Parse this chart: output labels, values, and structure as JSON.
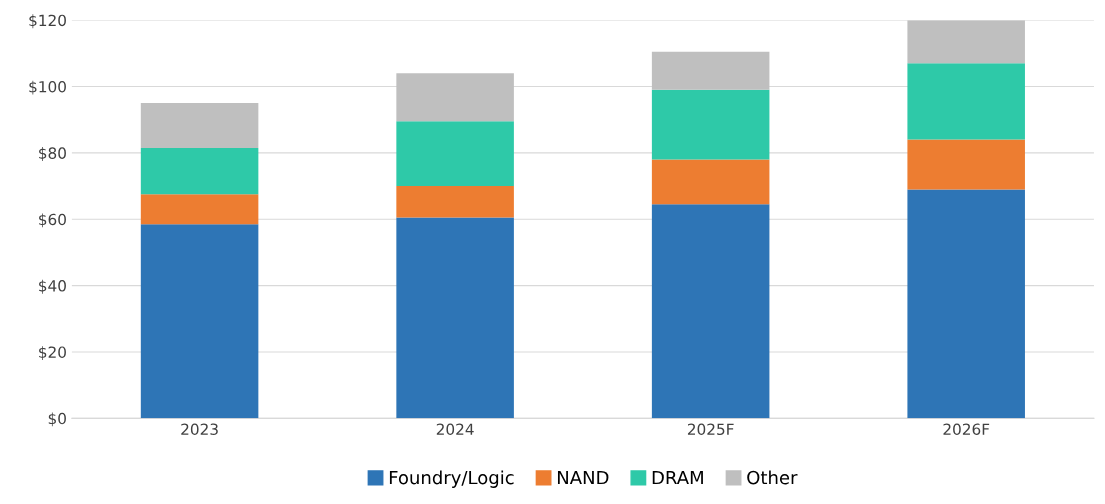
{
  "chart_data": {
    "type": "bar",
    "stacked": true,
    "categories": [
      "2023",
      "2024",
      "2025F",
      "2026F"
    ],
    "series": [
      {
        "name": "Foundry/Logic",
        "color": "#2e75b6",
        "values": [
          58.5,
          60.5,
          64.5,
          69
        ]
      },
      {
        "name": "NAND",
        "color": "#ed7d31",
        "values": [
          9,
          9.5,
          13.5,
          15
        ]
      },
      {
        "name": "DRAM",
        "color": "#2ec9a8",
        "values": [
          14,
          19.5,
          21,
          23
        ]
      },
      {
        "name": "Other",
        "color": "#bfbfbf",
        "values": [
          13.5,
          14.5,
          11.5,
          13
        ]
      }
    ],
    "ylim": [
      0,
      120
    ],
    "yticks": [
      {
        "value": 0,
        "label": "$0"
      },
      {
        "value": 20,
        "label": "$20"
      },
      {
        "value": 40,
        "label": "$40"
      },
      {
        "value": 60,
        "label": "$60"
      },
      {
        "value": 80,
        "label": "$80"
      },
      {
        "value": 100,
        "label": "$100"
      },
      {
        "value": 120,
        "label": "$120"
      }
    ],
    "grid": "y",
    "legend": "bottom"
  }
}
